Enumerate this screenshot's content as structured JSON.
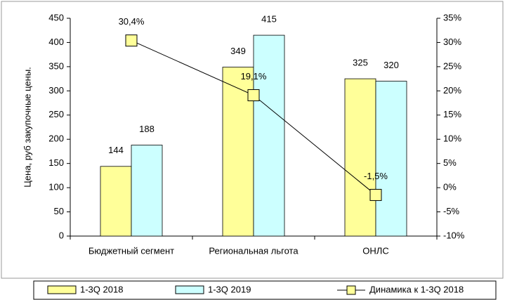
{
  "chart_data": {
    "type": "bar",
    "y_label": "Цена, руб закупочные цены.",
    "categories": [
      "Бюджетный сегмент",
      "Региональная льгота",
      "ОНЛС"
    ],
    "series": [
      {
        "name": "1-3Q 2018",
        "color": "#ffff99",
        "values": [
          144,
          349,
          325
        ]
      },
      {
        "name": "1-3Q 2019",
        "color": "#ccffff",
        "values": [
          188,
          415,
          320
        ]
      },
      {
        "name": "Динамика к 1-3Q 2018",
        "type": "line",
        "axis": "y2",
        "color": "#000000",
        "marker_color": "#ffff99",
        "values": [
          30.4,
          19.1,
          -1.5
        ],
        "value_labels": [
          "30,4%",
          "19,1%",
          "-1,5%"
        ]
      }
    ],
    "ylim": [
      0,
      450
    ],
    "yticks": [
      0,
      50,
      100,
      150,
      200,
      250,
      300,
      350,
      400,
      450
    ],
    "y2lim": [
      -10,
      35
    ],
    "y2ticks": [
      {
        "value": -10,
        "label": "-10%"
      },
      {
        "value": -5,
        "label": "-5%"
      },
      {
        "value": 0,
        "label": "0%"
      },
      {
        "value": 5,
        "label": "5%"
      },
      {
        "value": 10,
        "label": "10%"
      },
      {
        "value": 15,
        "label": "15%"
      },
      {
        "value": 20,
        "label": "20%"
      },
      {
        "value": 25,
        "label": "25%"
      },
      {
        "value": 30,
        "label": "30%"
      },
      {
        "value": 35,
        "label": "35%"
      }
    ],
    "legend": "bottom",
    "grid": false
  }
}
